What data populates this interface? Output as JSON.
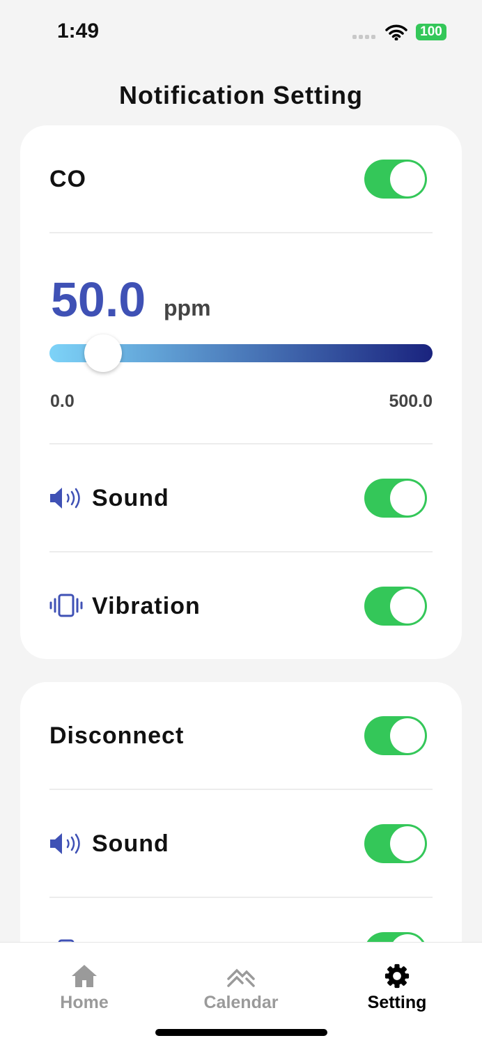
{
  "status": {
    "time": "1:49",
    "battery": "100"
  },
  "header": {
    "title": "Notification Setting"
  },
  "co_card": {
    "label": "CO",
    "enabled": true,
    "value": "50.0",
    "unit": "ppm",
    "min": "0.0",
    "max": "500.0",
    "slider_fraction": 0.1,
    "sound": {
      "label": "Sound",
      "icon": "speaker-icon",
      "enabled": true
    },
    "vibration": {
      "label": "Vibration",
      "icon": "vibration-icon",
      "enabled": true
    }
  },
  "disconnect_card": {
    "label": "Disconnect",
    "enabled": true,
    "sound": {
      "label": "Sound",
      "icon": "speaker-icon",
      "enabled": true
    },
    "vibration": {
      "enabled": true
    }
  },
  "tabs": [
    {
      "label": "Home",
      "icon": "home-icon",
      "active": false
    },
    {
      "label": "Calendar",
      "icon": "chart-icon",
      "active": false
    },
    {
      "label": "Setting",
      "icon": "gear-icon",
      "active": true
    }
  ],
  "colors": {
    "accent": "#3f51b5",
    "toggle_on": "#34c759",
    "slider_start": "#7dd3f8",
    "slider_end": "#1a237e"
  }
}
